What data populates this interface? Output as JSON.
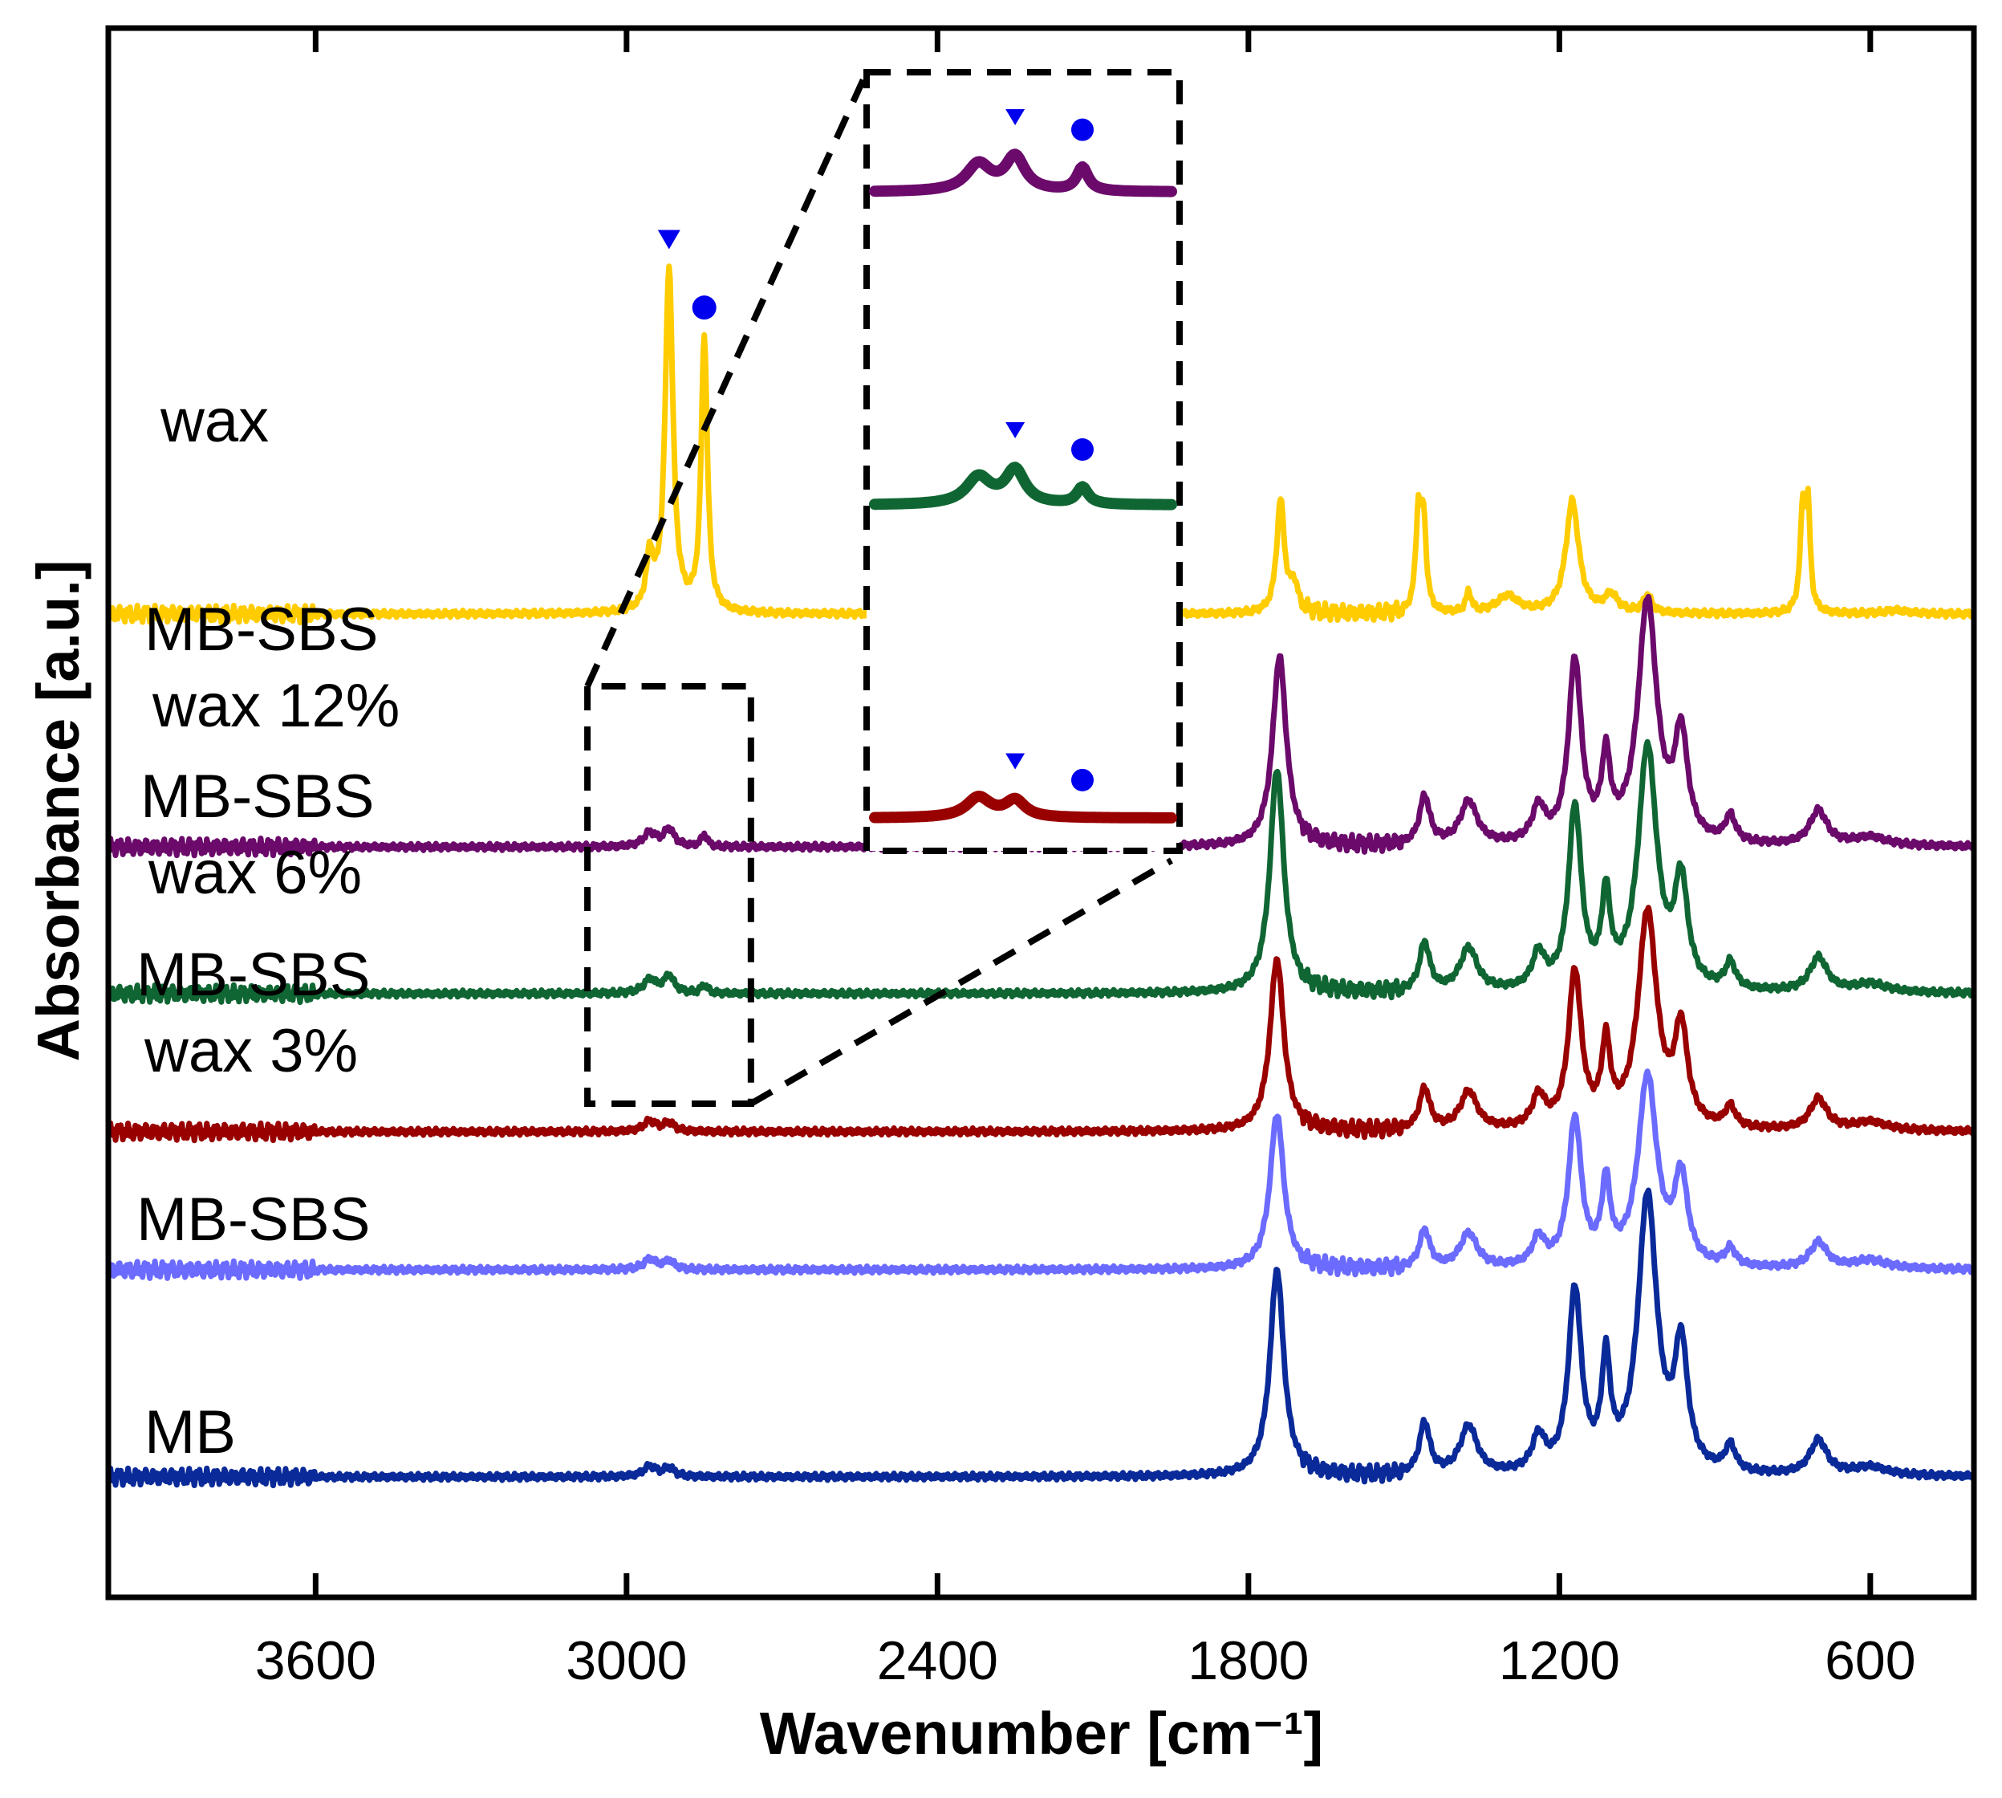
{
  "chart_data": {
    "type": "line",
    "title": "",
    "xlabel": "Wavenumber [cm⁻¹]",
    "ylabel": "Absorbance [a.u.]",
    "xlim": [
      4000,
      400
    ],
    "x_reversed": true,
    "x_ticks": [
      "3600",
      "3000",
      "2400",
      "1800",
      "1200",
      "600"
    ],
    "y_ticks_shown": false,
    "grid": false,
    "inset": {
      "x_range": [
        3060,
        2760
      ],
      "series": [
        "MB-SBS wax 12%",
        "MB-SBS wax 6%",
        "MB-SBS wax 3%"
      ],
      "markers": [
        {
          "shape": "triangle",
          "x": 2918,
          "color": "#0000ee"
        },
        {
          "shape": "circle",
          "x": 2850,
          "color": "#0000ee"
        }
      ]
    },
    "markers": [
      {
        "shape": "triangle",
        "x": 2918,
        "color": "#0000ee"
      },
      {
        "shape": "circle",
        "x": 2850,
        "color": "#0000ee"
      }
    ],
    "series": [
      {
        "name_lines": [
          "wax"
        ],
        "color": "#ffcc00",
        "offset": 5.0,
        "peaks": [
          [
            2955,
            0.3,
            8
          ],
          [
            2918,
            2.0,
            9
          ],
          [
            2850,
            1.6,
            7
          ],
          [
            1738,
            0.65,
            9
          ],
          [
            1712,
            0.15,
            10
          ],
          [
            1472,
            0.55,
            6
          ],
          [
            1462,
            0.5,
            6
          ],
          [
            1375,
            0.12,
            6
          ],
          [
            1300,
            0.1,
            25
          ],
          [
            1175,
            0.65,
            15
          ],
          [
            1100,
            0.1,
            15
          ],
          [
            1030,
            0.1,
            10
          ],
          [
            730,
            0.6,
            6
          ],
          [
            720,
            0.55,
            5
          ],
          [
            550,
            0.02,
            30
          ]
        ]
      },
      {
        "name_lines": [
          "MB-SBS",
          "wax 12%"
        ],
        "color": "#6b0a6b",
        "offset": 3.65,
        "peaks": [
          [
            2955,
            0.08,
            15
          ],
          [
            2918,
            0.1,
            12
          ],
          [
            2850,
            0.07,
            7
          ],
          [
            1740,
            1.1,
            16
          ],
          [
            1460,
            0.28,
            12
          ],
          [
            1375,
            0.25,
            20
          ],
          [
            1240,
            0.2,
            15
          ],
          [
            1170,
            1.05,
            15
          ],
          [
            1110,
            0.45,
            10
          ],
          [
            1030,
            1.4,
            22
          ],
          [
            965,
            0.6,
            15
          ],
          [
            870,
            0.15,
            12
          ],
          [
            700,
            0.2,
            20
          ],
          [
            600,
            0.05,
            40
          ]
        ]
      },
      {
        "name_lines": [
          "MB-SBS",
          "wax 6%"
        ],
        "color": "#106633",
        "offset": 2.8,
        "peaks": [
          [
            2955,
            0.08,
            15
          ],
          [
            2918,
            0.1,
            12
          ],
          [
            2850,
            0.05,
            7
          ],
          [
            1745,
            1.3,
            16
          ],
          [
            1460,
            0.28,
            12
          ],
          [
            1375,
            0.25,
            20
          ],
          [
            1240,
            0.2,
            15
          ],
          [
            1170,
            1.05,
            15
          ],
          [
            1110,
            0.5,
            10
          ],
          [
            1030,
            1.4,
            22
          ],
          [
            965,
            0.6,
            15
          ],
          [
            870,
            0.15,
            12
          ],
          [
            700,
            0.2,
            20
          ],
          [
            600,
            0.05,
            40
          ]
        ]
      },
      {
        "name_lines": [
          "MB-SBS",
          "wax 3%"
        ],
        "color": "#990000",
        "offset": 2.0,
        "peaks": [
          [
            2955,
            0.06,
            15
          ],
          [
            2918,
            0.05,
            12
          ],
          [
            1745,
            1.0,
            16
          ],
          [
            1460,
            0.24,
            12
          ],
          [
            1375,
            0.22,
            20
          ],
          [
            1240,
            0.18,
            15
          ],
          [
            1170,
            0.9,
            15
          ],
          [
            1110,
            0.45,
            10
          ],
          [
            1030,
            1.25,
            22
          ],
          [
            965,
            0.55,
            15
          ],
          [
            870,
            0.12,
            12
          ],
          [
            700,
            0.18,
            20
          ],
          [
            600,
            0.05,
            40
          ]
        ]
      },
      {
        "name_lines": [
          "MB-SBS"
        ],
        "color": "#6b6bff",
        "offset": 1.2,
        "peaks": [
          [
            2955,
            0.06,
            15
          ],
          [
            2918,
            0.05,
            12
          ],
          [
            1745,
            0.9,
            16
          ],
          [
            1460,
            0.22,
            12
          ],
          [
            1375,
            0.2,
            20
          ],
          [
            1240,
            0.16,
            15
          ],
          [
            1170,
            0.85,
            15
          ],
          [
            1110,
            0.45,
            10
          ],
          [
            1030,
            1.1,
            22
          ],
          [
            965,
            0.5,
            15
          ],
          [
            870,
            0.1,
            12
          ],
          [
            700,
            0.15,
            20
          ],
          [
            600,
            0.05,
            40
          ]
        ]
      },
      {
        "name_lines": [
          "MB"
        ],
        "color": "#0a2a99",
        "offset": 0.0,
        "peaks": [
          [
            2955,
            0.06,
            15
          ],
          [
            2918,
            0.05,
            12
          ],
          [
            1745,
            1.2,
            16
          ],
          [
            1460,
            0.3,
            12
          ],
          [
            1375,
            0.28,
            20
          ],
          [
            1240,
            0.2,
            15
          ],
          [
            1170,
            1.05,
            15
          ],
          [
            1110,
            0.6,
            10
          ],
          [
            1030,
            1.6,
            22
          ],
          [
            965,
            0.7,
            15
          ],
          [
            870,
            0.15,
            12
          ],
          [
            700,
            0.2,
            20
          ],
          [
            600,
            0.05,
            40
          ]
        ]
      }
    ]
  }
}
